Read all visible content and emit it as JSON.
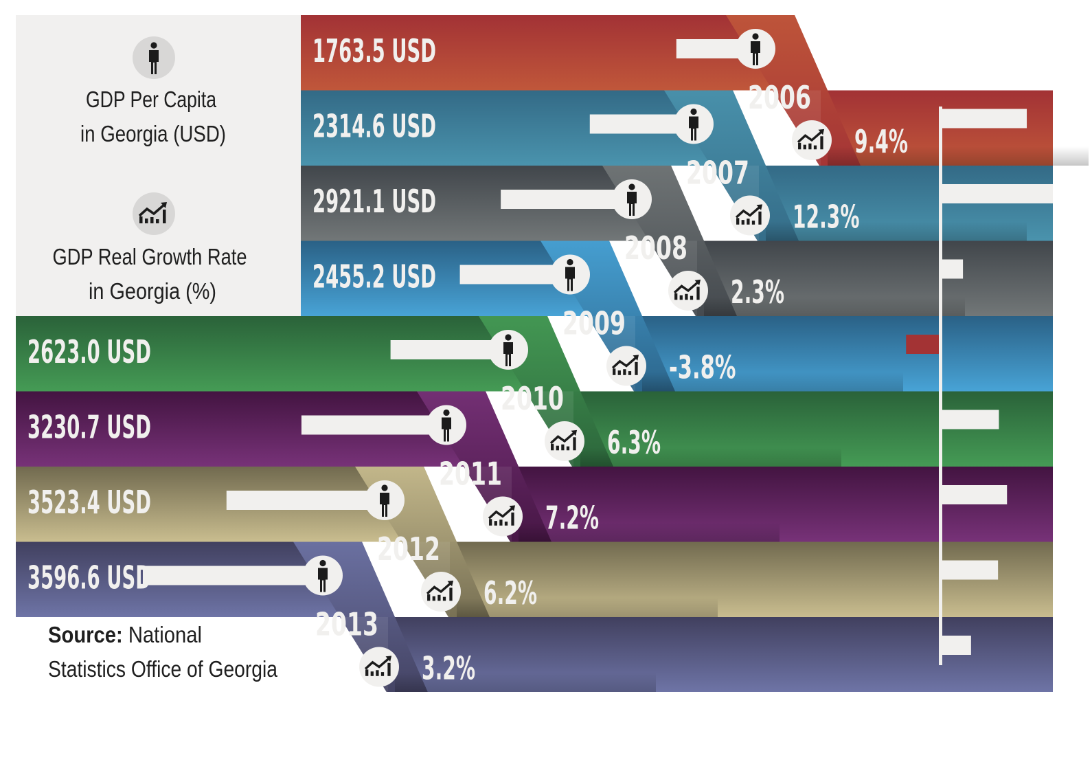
{
  "legend": {
    "per_capita_icon": "person-icon",
    "per_capita_line1": "GDP Per Capita",
    "per_capita_line2": "in Georgia (USD)",
    "growth_icon": "growth-chart-icon",
    "growth_line1": "GDP Real Growth Rate",
    "growth_line2": "in Georgia (%)"
  },
  "source": {
    "label": "Source:",
    "line1_rest": " National",
    "line2": "Statistics Office of Georgia"
  },
  "colors": {
    "panel": "#f1f0ef",
    "negative_bar": "#a33334",
    "bar": "#f1f0ee",
    "rows": [
      [
        "#a23235",
        "#c0573a"
      ],
      [
        "#336a86",
        "#4a93ad"
      ],
      [
        "#41464b",
        "#727778"
      ],
      [
        "#2a6186",
        "#48a3d6"
      ],
      [
        "#2a6239",
        "#459b55"
      ],
      [
        "#431441",
        "#773278"
      ],
      [
        "#716a4f",
        "#c9bd8f"
      ],
      [
        "#41405f",
        "#6e74a6"
      ]
    ]
  },
  "chart_data": {
    "type": "bar",
    "title": "",
    "categories": [
      "2006",
      "2007",
      "2008",
      "2009",
      "2010",
      "2011",
      "2012",
      "2013"
    ],
    "series": [
      {
        "name": "GDP Per Capita in Georgia (USD)",
        "values": [
          1763.5,
          2314.6,
          2921.1,
          2455.2,
          2623.0,
          3230.7,
          3523.4,
          3596.6
        ],
        "labels": [
          "1763.5 USD",
          "2314.6 USD",
          "2921.1 USD",
          "2455.2 USD",
          "2623.0 USD",
          "3230.7 USD",
          "3523.4 USD",
          "3596.6 USD"
        ]
      },
      {
        "name": "GDP Real Growth Rate in Georgia (%)",
        "values": [
          9.4,
          12.3,
          2.3,
          -3.8,
          6.3,
          7.2,
          6.2,
          3.2
        ],
        "labels": [
          "9.4%",
          "12.3%",
          "2.3%",
          "-3.8%",
          "6.3%",
          "7.2%",
          "6.2%",
          "3.2%"
        ]
      }
    ],
    "xlabel": "",
    "ylabel": "",
    "grid": false
  }
}
